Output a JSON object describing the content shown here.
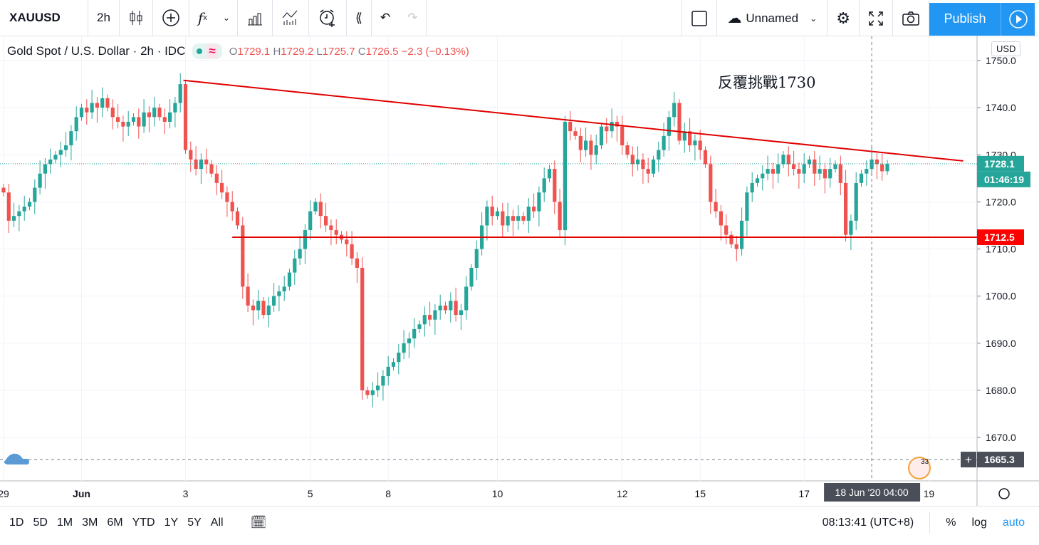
{
  "toolbar": {
    "symbol": "XAUUSD",
    "interval": "2h",
    "layout_name": "Unnamed",
    "publish": "Publish",
    "icons": [
      "candles-icon",
      "add-compare-icon",
      "indicators-icon",
      "chevron-down-icon",
      "financials-icon",
      "templates-icon",
      "alert-icon",
      "replay-icon",
      "undo-icon",
      "redo-icon",
      "fullscreen-square-icon",
      "cloud-icon",
      "settings-icon",
      "fullscreen-icon",
      "camera-icon",
      "play-icon"
    ]
  },
  "legend": {
    "title": "Gold Spot / U.S. Dollar · 2h · IDC",
    "o_label": "O",
    "o": "1729.1",
    "h_label": "H",
    "h": "1729.2",
    "l_label": "L",
    "l": "1725.7",
    "c_label": "C",
    "c": "1726.5",
    "change": "−2.3 (−0.13%)"
  },
  "axis": {
    "currency": "USD",
    "last_price": "1728.1",
    "countdown": "01:46:19",
    "level_label": "1712.5",
    "crosshair_price": "1665.3",
    "crosshair_time": "18 Jun '20   04:00",
    "event_count": "33"
  },
  "annotation": "反覆挑戰1730",
  "bottom": {
    "ranges": [
      "1D",
      "5D",
      "1M",
      "3M",
      "6M",
      "YTD",
      "1Y",
      "5Y",
      "All"
    ],
    "clock": "08:13:41 (UTC+8)",
    "percent": "%",
    "log": "log",
    "auto": "auto"
  },
  "colors": {
    "up": "#26a69a",
    "down": "#ef5350",
    "line": "#e00000",
    "accent": "#2196f3"
  },
  "chart_data": {
    "type": "candlestick",
    "title": "Gold Spot / U.S. Dollar · 2h · IDC",
    "ylim": [
      1663,
      1753
    ],
    "yticks": [
      1670,
      1680,
      1690,
      1700,
      1710,
      1720,
      1730,
      1740,
      1750
    ],
    "xticks": [
      {
        "label": "29",
        "i": 0
      },
      {
        "label": "Jun",
        "i": 15
      },
      {
        "label": "3",
        "i": 35
      },
      {
        "label": "5",
        "i": 59
      },
      {
        "label": "8",
        "i": 74
      },
      {
        "label": "10",
        "i": 95
      },
      {
        "label": "12",
        "i": 119
      },
      {
        "label": "15",
        "i": 134
      },
      {
        "label": "17",
        "i": 154
      },
      {
        "label": "19",
        "i": 178
      }
    ],
    "closes": [
      1722,
      1716,
      1717,
      1718,
      1719,
      1720,
      1723,
      1726,
      1728,
      1729,
      1730,
      1731,
      1732,
      1735,
      1738,
      1740,
      1739,
      1741,
      1740,
      1742,
      1740,
      1738,
      1737,
      1736,
      1737,
      1738,
      1736,
      1739,
      1738,
      1740,
      1738,
      1737,
      1739,
      1741,
      1745,
      1731,
      1729,
      1727,
      1729,
      1728,
      1726,
      1724,
      1722,
      1720,
      1718,
      1715,
      1702,
      1698,
      1697,
      1699,
      1696,
      1698,
      1700,
      1701,
      1702,
      1705,
      1708,
      1710,
      1714,
      1718,
      1720,
      1717,
      1715,
      1714,
      1713,
      1712,
      1711,
      1708,
      1706,
      1680,
      1679,
      1680,
      1681,
      1683,
      1685,
      1686,
      1688,
      1690,
      1691,
      1693,
      1694,
      1696,
      1695,
      1697,
      1698,
      1697,
      1699,
      1696,
      1697,
      1702,
      1706,
      1710,
      1715,
      1719,
      1717,
      1718,
      1715,
      1717,
      1716,
      1717,
      1716,
      1719,
      1718,
      1722,
      1725,
      1727,
      1720,
      1714,
      1737,
      1735,
      1734,
      1731,
      1733,
      1730,
      1732,
      1736,
      1735,
      1737,
      1736,
      1732,
      1730,
      1728,
      1729,
      1727,
      1726,
      1729,
      1731,
      1734,
      1738,
      1741,
      1733,
      1735,
      1732,
      1733,
      1731,
      1728,
      1720,
      1718,
      1715,
      1713,
      1711,
      1710,
      1716,
      1722,
      1724,
      1725,
      1726,
      1727,
      1726,
      1728,
      1730,
      1728,
      1727,
      1726,
      1728,
      1729,
      1726,
      1727,
      1725,
      1727,
      1728,
      1724,
      1713,
      1716,
      1724,
      1726,
      1727,
      1729,
      1728,
      1726.5,
      1728.1
    ],
    "trendline": {
      "from": [
        34.6,
        1745.8
      ],
      "to": [
        184.6,
        1728.7
      ]
    },
    "support": {
      "price": 1712.5,
      "from_index": 44
    },
    "last_price": 1728.1,
    "crosshair": {
      "index": 167,
      "price": 1665.3
    }
  }
}
